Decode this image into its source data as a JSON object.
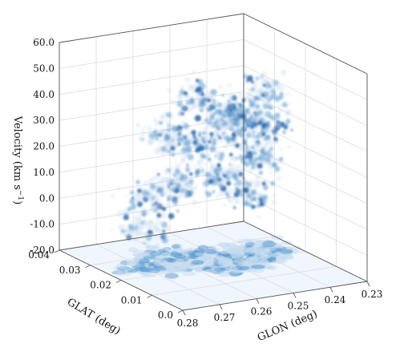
{
  "chart_data": {
    "type": "scatter",
    "subtype": "3d-ppv-cube",
    "title": "",
    "xlabel": "GLON (deg)",
    "ylabel": "GLAT (deg)",
    "zlabel_main": "Velocity (km s",
    "zlabel_sup": "−1",
    "zlabel_end": ")",
    "x_ticks": [
      "0.28",
      "0.27",
      "0.26",
      "0.25",
      "0.24",
      "0.23"
    ],
    "y_ticks": [
      "0.0",
      "0.01",
      "0.02",
      "0.03",
      "0.04"
    ],
    "z_ticks": [
      "-20.0",
      "-10.0",
      "0.0",
      "10.0",
      "20.0",
      "30.0",
      "40.0",
      "50.0",
      "60.0"
    ],
    "xlim": [
      0.28,
      0.23
    ],
    "ylim": [
      0.0,
      0.04
    ],
    "zlim": [
      -20.0,
      60.0
    ],
    "grid": true,
    "colormap": "Blues",
    "colors": {
      "dark": "#1f5fa8",
      "mid": "#5a9bd0",
      "light": "#c6dbef",
      "floor": "#f0f6fd"
    },
    "emission_clumps": [
      {
        "glon": 0.262,
        "glat": 0.022,
        "v": 12.0,
        "intensity": 0.55
      },
      {
        "glon": 0.256,
        "glat": 0.026,
        "v": 22.0,
        "intensity": 0.6
      },
      {
        "glon": 0.252,
        "glat": 0.021,
        "v": 30.0,
        "intensity": 0.75
      },
      {
        "glon": 0.247,
        "glat": 0.023,
        "v": 35.0,
        "intensity": 0.85
      },
      {
        "glon": 0.243,
        "glat": 0.025,
        "v": 32.0,
        "intensity": 0.8
      },
      {
        "glon": 0.239,
        "glat": 0.022,
        "v": 28.0,
        "intensity": 0.7
      },
      {
        "glon": 0.255,
        "glat": 0.018,
        "v": 16.0,
        "intensity": 0.65
      },
      {
        "glon": 0.248,
        "glat": 0.017,
        "v": 8.0,
        "intensity": 0.55
      },
      {
        "glon": 0.266,
        "glat": 0.027,
        "v": 4.0,
        "intensity": 0.45
      },
      {
        "glon": 0.271,
        "glat": 0.024,
        "v": -4.0,
        "intensity": 0.35
      },
      {
        "glon": 0.26,
        "glat": 0.03,
        "v": 26.0,
        "intensity": 0.5
      },
      {
        "glon": 0.244,
        "glat": 0.019,
        "v": 20.0,
        "intensity": 0.7
      },
      {
        "glon": 0.236,
        "glat": 0.026,
        "v": 40.0,
        "intensity": 0.55
      },
      {
        "glon": 0.253,
        "glat": 0.027,
        "v": 40.0,
        "intensity": 0.6
      }
    ]
  }
}
